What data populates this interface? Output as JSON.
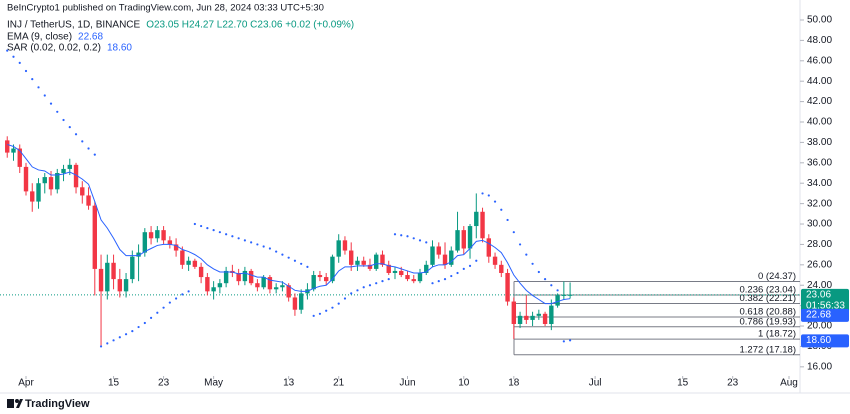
{
  "header": {
    "published": "BeInCrypto1 published on TradingView.com, Jun 28, 2024 03:33 UTC+5:30",
    "symbol": "INJ / TetherUS, 1D, BINANCE",
    "ohlc": "O23.05 H24.27 L22.70 C23.06 +0.02 (+0.09%)",
    "brand": "TradingView"
  },
  "chart_data": {
    "type": "candlestick",
    "up_color": "#089981",
    "down_color": "#f23645",
    "grid": false,
    "ylim": [
      15.2,
      51.96
    ],
    "yticks": [
      {
        "value": 50,
        "label": "50.00"
      },
      {
        "value": 48,
        "label": "48.00"
      },
      {
        "value": 46,
        "label": "46.00"
      },
      {
        "value": 44,
        "label": "44.00"
      },
      {
        "value": 42,
        "label": "42.00"
      },
      {
        "value": 40,
        "label": "40.00"
      },
      {
        "value": 38,
        "label": "38.00"
      },
      {
        "value": 36,
        "label": "36.00"
      },
      {
        "value": 34,
        "label": "34.00"
      },
      {
        "value": 32,
        "label": "32.00"
      },
      {
        "value": 30,
        "label": "30.00"
      },
      {
        "value": 28,
        "label": "28.00"
      },
      {
        "value": 26,
        "label": "26.00"
      },
      {
        "value": 24,
        "label": "24.00"
      },
      {
        "value": 22,
        "label": "22.00"
      },
      {
        "value": 20,
        "label": "20.00"
      },
      {
        "value": 18,
        "label": "18.00"
      },
      {
        "value": 16,
        "label": "16.00"
      }
    ],
    "categories": [
      null,
      null,
      null,
      "Apr",
      null,
      null,
      null,
      null,
      null,
      null,
      null,
      null,
      null,
      null,
      null,
      null,
      null,
      "15",
      null,
      null,
      null,
      null,
      null,
      null,
      null,
      "23",
      null,
      null,
      null,
      null,
      null,
      null,
      null,
      "May",
      null,
      null,
      null,
      null,
      null,
      null,
      null,
      null,
      null,
      null,
      null,
      "13",
      null,
      null,
      null,
      null,
      null,
      null,
      null,
      "21",
      null,
      null,
      null,
      null,
      null,
      null,
      null,
      null,
      null,
      null,
      "Jun",
      null,
      null,
      null,
      null,
      null,
      null,
      null,
      null,
      "10",
      null,
      null,
      null,
      null,
      null,
      null,
      null,
      "18",
      null,
      null,
      null,
      null,
      null,
      null,
      null,
      null,
      null,
      null,
      null,
      null,
      "Jul",
      null,
      null,
      null,
      null,
      null,
      null,
      null,
      null,
      null,
      null,
      null,
      null,
      null,
      "15",
      null,
      null,
      null,
      null,
      null,
      null,
      null,
      "23",
      null,
      null,
      null,
      null,
      null,
      null,
      null,
      null,
      "Aug"
    ],
    "open": [
      38.2,
      37.0,
      37.4,
      35.6,
      33.2,
      32.2,
      34.0,
      34.6,
      33.4,
      35.0,
      35.4,
      35.8,
      33.6,
      32.8,
      31.8,
      25.6,
      23.4,
      26.2,
      24.6,
      23.4,
      24.6,
      26.8,
      27.2,
      29.2,
      28.6,
      29.4,
      28.4,
      28.0,
      27.4,
      26.0,
      26.4,
      25.8,
      24.8,
      23.4,
      23.8,
      24.2,
      25.4,
      25.2,
      24.4,
      25.4,
      24.2,
      23.8,
      24.8,
      23.6,
      23.8,
      24.0,
      22.8,
      21.6,
      23.2,
      23.6,
      25.0,
      24.8,
      24.4,
      26.8,
      28.4,
      27.4,
      26.0,
      26.4,
      26.0,
      25.6,
      27.0,
      26.0,
      25.2,
      25.4,
      25.0,
      24.6,
      24.4,
      25.2,
      26.0,
      27.8,
      27.0,
      26.0,
      27.4,
      29.4,
      27.6,
      29.8,
      31.2,
      28.6,
      26.8,
      26.0,
      25.2,
      22.4,
      20.2,
      21.0,
      20.6,
      21.0,
      21.2,
      20.2,
      22.0,
      23.0,
      23.05,
      null,
      null,
      null,
      null,
      null,
      null,
      null,
      null,
      null,
      null,
      null,
      null,
      null,
      null,
      null,
      null,
      null,
      null,
      null,
      null,
      null,
      null,
      null,
      null,
      null,
      null,
      null,
      null,
      null,
      null,
      null,
      null,
      null,
      null,
      null
    ],
    "high": [
      38.6,
      37.8,
      37.8,
      36.0,
      34.0,
      34.5,
      35.0,
      35.2,
      35.4,
      35.8,
      36.4,
      36.0,
      34.2,
      33.6,
      32.2,
      27.0,
      27.0,
      27.0,
      25.6,
      25.2,
      27.4,
      28.0,
      29.6,
      29.8,
      29.8,
      29.8,
      28.8,
      28.6,
      27.8,
      26.8,
      26.6,
      26.2,
      25.2,
      24.4,
      24.6,
      25.8,
      26.0,
      25.6,
      25.8,
      25.6,
      24.6,
      25.0,
      25.0,
      24.2,
      24.4,
      24.2,
      23.2,
      23.6,
      24.2,
      25.4,
      25.4,
      25.2,
      27.0,
      29.0,
      28.8,
      28.2,
      26.8,
      26.8,
      26.6,
      27.2,
      27.4,
      26.4,
      25.8,
      25.8,
      25.4,
      25.0,
      25.6,
      26.4,
      28.4,
      28.2,
      28.2,
      27.8,
      31.2,
      29.8,
      30.0,
      33.0,
      31.6,
      29.0,
      27.2,
      26.4,
      25.6,
      22.8,
      21.4,
      23.0,
      21.4,
      21.6,
      21.4,
      22.6,
      23.2,
      24.37,
      24.27,
      null,
      null,
      null,
      null,
      null,
      null,
      null,
      null,
      null,
      null,
      null,
      null,
      null,
      null,
      null,
      null,
      null,
      null,
      null,
      null,
      null,
      null,
      null,
      null,
      null,
      null,
      null,
      null,
      null,
      null,
      null,
      null,
      null,
      null,
      null
    ],
    "low": [
      36.5,
      36.2,
      35.0,
      32.8,
      31.2,
      31.5,
      33.0,
      32.8,
      33.0,
      34.2,
      34.8,
      33.0,
      32.0,
      31.4,
      23.0,
      18.0,
      22.6,
      23.6,
      22.8,
      22.8,
      24.2,
      24.4,
      26.8,
      28.0,
      28.2,
      28.0,
      27.6,
      26.8,
      25.6,
      25.4,
      25.6,
      24.2,
      23.0,
      22.6,
      23.2,
      23.8,
      24.8,
      24.0,
      24.0,
      24.0,
      23.4,
      23.6,
      23.2,
      23.2,
      23.4,
      22.4,
      21.0,
      21.2,
      22.6,
      23.4,
      24.4,
      24.0,
      24.2,
      26.2,
      27.0,
      25.4,
      25.4,
      25.8,
      25.4,
      25.4,
      25.8,
      25.0,
      24.6,
      24.8,
      24.4,
      24.2,
      24.2,
      25.0,
      25.8,
      26.6,
      25.6,
      25.8,
      27.2,
      27.0,
      26.6,
      28.6,
      28.2,
      26.2,
      25.6,
      24.8,
      22.0,
      18.72,
      19.8,
      20.2,
      20.0,
      20.6,
      20.0,
      19.6,
      21.8,
      22.6,
      22.7,
      null,
      null,
      null,
      null,
      null,
      null,
      null,
      null,
      null,
      null,
      null,
      null,
      null,
      null,
      null,
      null,
      null,
      null,
      null,
      null,
      null,
      null,
      null,
      null,
      null,
      null,
      null,
      null,
      null,
      null,
      null,
      null,
      null,
      null,
      null
    ],
    "close": [
      37.0,
      37.4,
      35.6,
      33.2,
      32.2,
      34.0,
      34.6,
      33.4,
      35.0,
      35.4,
      35.8,
      33.6,
      32.8,
      31.8,
      25.6,
      23.4,
      26.2,
      24.6,
      23.4,
      24.6,
      26.8,
      27.2,
      29.2,
      28.6,
      29.4,
      28.4,
      28.0,
      27.4,
      26.0,
      26.4,
      25.8,
      24.8,
      23.4,
      23.8,
      24.2,
      25.4,
      25.2,
      24.4,
      25.4,
      24.2,
      23.8,
      24.8,
      23.6,
      23.8,
      24.0,
      22.8,
      21.6,
      23.2,
      23.6,
      25.0,
      24.8,
      24.4,
      26.8,
      28.4,
      27.4,
      26.0,
      26.4,
      26.0,
      25.6,
      27.0,
      26.0,
      25.2,
      25.4,
      25.0,
      24.6,
      24.4,
      25.2,
      26.0,
      27.8,
      27.0,
      26.0,
      27.4,
      29.4,
      27.6,
      29.8,
      31.2,
      28.6,
      26.8,
      26.0,
      25.2,
      22.4,
      20.2,
      21.0,
      20.6,
      21.0,
      21.2,
      20.2,
      22.0,
      23.0,
      23.05,
      23.06,
      null,
      null,
      null,
      null,
      null,
      null,
      null,
      null,
      null,
      null,
      null,
      null,
      null,
      null,
      null,
      null,
      null,
      null,
      null,
      null,
      null,
      null,
      null,
      null,
      null,
      null,
      null,
      null,
      null,
      null,
      null,
      null,
      null,
      null,
      null
    ],
    "countdown": "01:56:33",
    "indicators": [
      {
        "name": "EMA (9, close)",
        "style": "line",
        "color": "#2962ff",
        "value_label": "22.68",
        "values": [
          37.8,
          37.6,
          37.2,
          36.4,
          35.6,
          35.3,
          35.2,
          34.8,
          34.8,
          34.9,
          35.1,
          34.8,
          34.4,
          33.9,
          32.2,
          30.4,
          29.6,
          28.6,
          27.5,
          26.9,
          26.9,
          26.9,
          27.3,
          27.6,
          27.9,
          28.0,
          28.0,
          27.9,
          27.5,
          27.3,
          27.0,
          26.6,
          26.0,
          25.6,
          25.3,
          25.3,
          25.3,
          25.1,
          25.2,
          25.0,
          24.8,
          24.8,
          24.5,
          24.4,
          24.3,
          23.9,
          23.5,
          23.4,
          23.4,
          23.7,
          23.9,
          24.0,
          24.6,
          25.4,
          25.8,
          25.8,
          25.9,
          25.9,
          25.9,
          26.1,
          26.1,
          25.9,
          25.8,
          25.6,
          25.4,
          25.2,
          25.2,
          25.3,
          25.8,
          26.0,
          26.0,
          26.3,
          26.9,
          27.0,
          27.6,
          28.3,
          28.4,
          28.1,
          27.7,
          27.2,
          26.2,
          25.0,
          24.2,
          23.5,
          23.0,
          22.6,
          22.2,
          22.2,
          22.4,
          22.6,
          22.68,
          null,
          null,
          null,
          null,
          null,
          null,
          null,
          null,
          null,
          null,
          null,
          null,
          null,
          null,
          null,
          null,
          null,
          null,
          null,
          null,
          null,
          null,
          null,
          null,
          null,
          null,
          null,
          null,
          null,
          null,
          null,
          null,
          null,
          null,
          null
        ]
      },
      {
        "name": "SAR (0.02, 0.02, 0.2)",
        "style": "dots",
        "color": "#2962ff",
        "value_label": "18.60",
        "values": [
          47.0,
          46.4,
          45.8,
          45.0,
          44.2,
          43.4,
          42.6,
          41.8,
          41.0,
          40.2,
          39.5,
          38.8,
          38.1,
          37.4,
          36.8,
          18.0,
          18.3,
          18.6,
          18.9,
          19.2,
          19.5,
          19.9,
          20.3,
          20.8,
          21.3,
          21.8,
          22.3,
          22.7,
          23.1,
          23.4,
          30.0,
          29.8,
          29.6,
          29.4,
          29.2,
          29.0,
          28.8,
          28.6,
          28.4,
          28.2,
          28.0,
          27.8,
          27.6,
          27.3,
          27.0,
          26.7,
          26.4,
          26.1,
          25.8,
          21.0,
          21.2,
          21.5,
          21.8,
          22.2,
          22.7,
          23.2,
          23.5,
          23.8,
          24.0,
          24.2,
          24.4,
          24.6,
          29.0,
          28.9,
          28.8,
          28.6,
          28.4,
          28.2,
          24.2,
          24.4,
          24.6,
          24.9,
          25.2,
          25.6,
          25.9,
          26.4,
          33.0,
          32.8,
          32.2,
          31.4,
          30.4,
          29.2,
          28.0,
          27.0,
          26.1,
          25.3,
          24.6,
          24.0,
          23.5,
          18.5,
          18.6,
          null,
          null,
          null,
          null,
          null,
          null,
          null,
          null,
          null,
          null,
          null,
          null,
          null,
          null,
          null,
          null,
          null,
          null,
          null,
          null,
          null,
          null,
          null,
          null,
          null,
          null,
          null,
          null,
          null,
          null,
          null,
          null,
          null,
          null,
          null
        ]
      }
    ],
    "fibonacci": [
      {
        "value": 24.37,
        "label": "0 (24.37)"
      },
      {
        "value": 23.04,
        "label": "0.236 (23.04)"
      },
      {
        "value": 22.21,
        "label": "0.382 (22.21)"
      },
      {
        "value": 20.88,
        "label": "0.618 (20.88)"
      },
      {
        "value": 19.93,
        "label": "0.786 (19.93)"
      },
      {
        "value": 18.72,
        "label": "1 (18.72)"
      },
      {
        "value": 17.18,
        "label": "1.272 (17.18)"
      }
    ]
  }
}
